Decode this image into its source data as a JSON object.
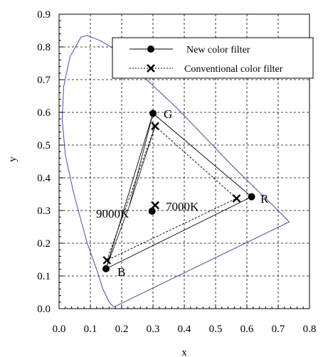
{
  "chart_data": {
    "type": "scatter",
    "title": "",
    "xlabel": "x",
    "ylabel": "y",
    "xlim": [
      0.0,
      0.8
    ],
    "ylim": [
      0.0,
      0.9
    ],
    "x_ticks": [
      "0.0",
      "0.1",
      "0.2",
      "0.3",
      "0.4",
      "0.5",
      "0.6",
      "0.7",
      "0.8"
    ],
    "y_ticks": [
      "0.0",
      "0.1",
      "0.2",
      "0.3",
      "0.4",
      "0.5",
      "0.6",
      "0.7",
      "0.8",
      "0.9"
    ],
    "grid": true,
    "legend_position": "top-right",
    "locus_color": "#4a4aa8",
    "spectral_locus": [
      [
        0.175,
        0.005
      ],
      [
        0.16,
        0.02
      ],
      [
        0.14,
        0.06
      ],
      [
        0.12,
        0.12
      ],
      [
        0.09,
        0.2
      ],
      [
        0.07,
        0.27
      ],
      [
        0.045,
        0.36
      ],
      [
        0.02,
        0.47
      ],
      [
        0.01,
        0.58
      ],
      [
        0.015,
        0.68
      ],
      [
        0.035,
        0.77
      ],
      [
        0.07,
        0.83
      ],
      [
        0.09,
        0.835
      ],
      [
        0.13,
        0.82
      ],
      [
        0.2,
        0.78
      ],
      [
        0.28,
        0.7
      ],
      [
        0.38,
        0.61
      ],
      [
        0.47,
        0.52
      ],
      [
        0.55,
        0.44
      ],
      [
        0.63,
        0.365
      ],
      [
        0.7,
        0.3
      ],
      [
        0.735,
        0.265
      ]
    ],
    "series": [
      {
        "name": "New color filter",
        "marker": "circle",
        "line": "solid",
        "points": [
          {
            "label": "G",
            "x": 0.3,
            "y": 0.597
          },
          {
            "label": "R",
            "x": 0.615,
            "y": 0.342
          },
          {
            "label": "B",
            "x": 0.15,
            "y": 0.122
          }
        ],
        "white_point": {
          "x": 0.297,
          "y": 0.298
        }
      },
      {
        "name": "Conventional color filter",
        "marker": "cross",
        "line": "dashed",
        "points": [
          {
            "label": "G",
            "x": 0.307,
            "y": 0.558
          },
          {
            "label": "R",
            "x": 0.567,
            "y": 0.337
          },
          {
            "label": "B",
            "x": 0.153,
            "y": 0.148
          }
        ],
        "white_point": {
          "x": 0.307,
          "y": 0.316
        }
      }
    ],
    "annotations": {
      "G": "G",
      "R": "R",
      "B": "B",
      "k9000": "9000K",
      "k7000": "7000K"
    }
  }
}
